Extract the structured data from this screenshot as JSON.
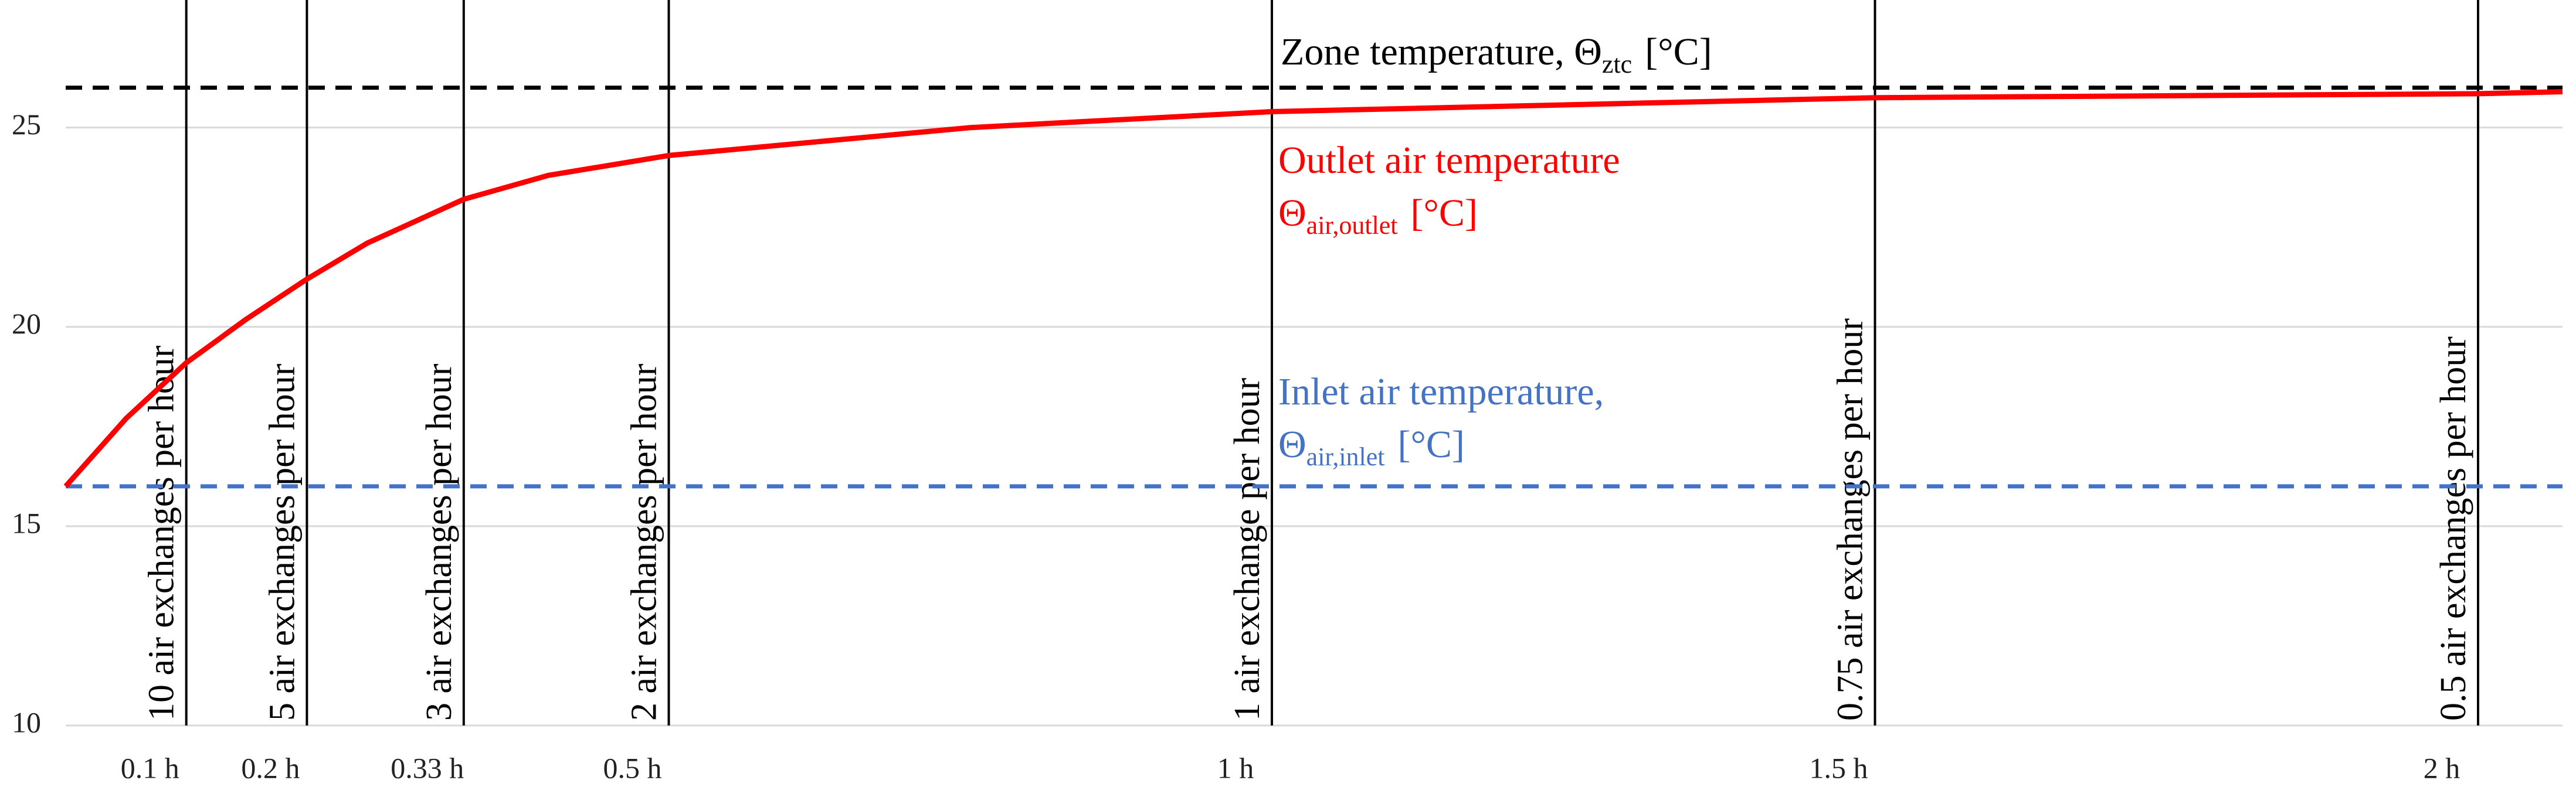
{
  "chart_data": {
    "type": "line",
    "xlim": [
      0,
      2.07
    ],
    "ylim": [
      10,
      28.2
    ],
    "yticks": [
      10,
      15,
      20,
      25
    ],
    "xticks": [
      {
        "value": 0.1,
        "label": "0.1 h"
      },
      {
        "value": 0.2,
        "label": "0.2 h"
      },
      {
        "value": 0.33,
        "label": "0.33 h"
      },
      {
        "value": 0.5,
        "label": "0.5 h"
      },
      {
        "value": 1,
        "label": "1 h"
      },
      {
        "value": 1.5,
        "label": "1.5 h"
      },
      {
        "value": 2,
        "label": "2 h"
      }
    ],
    "xtick_annotations": [
      "10 air exchanges per hour",
      "5 air exchanges per hour",
      "3 air exchanges per hour",
      "2 air exchanges per hour",
      "1 air exchange per hour",
      "0.75 air exchanges per hour",
      "0.5 air exchanges per hour"
    ],
    "grid": true,
    "series": [
      {
        "name": "Outlet air temperature",
        "color": "#ff0000",
        "x": [
          0,
          0.05,
          0.1,
          0.15,
          0.2,
          0.25,
          0.33,
          0.4,
          0.5,
          0.75,
          1,
          1.5,
          2,
          2.07
        ],
        "values": [
          16,
          17.7,
          19.1,
          20.2,
          21.2,
          22.1,
          23.2,
          23.8,
          24.3,
          25.0,
          25.4,
          25.75,
          25.85,
          25.9
        ]
      }
    ],
    "hlines": [
      {
        "value": 26,
        "color": "#000000",
        "label": {
          "text": "Zone temperature, Θ",
          "sub": "ztc",
          "unit": "[°C]"
        }
      },
      {
        "value": 16,
        "color": "#4472c4"
      }
    ],
    "annotations": [
      {
        "color": "#ff0000",
        "line1": "Outlet air temperature",
        "text": "Θ",
        "sub": "air,outlet",
        "unit": "[°C]"
      },
      {
        "color": "#4472c4",
        "line1": "Inlet air temperature,",
        "text": "Θ",
        "sub": "air,inlet",
        "unit": "[°C]"
      }
    ]
  }
}
